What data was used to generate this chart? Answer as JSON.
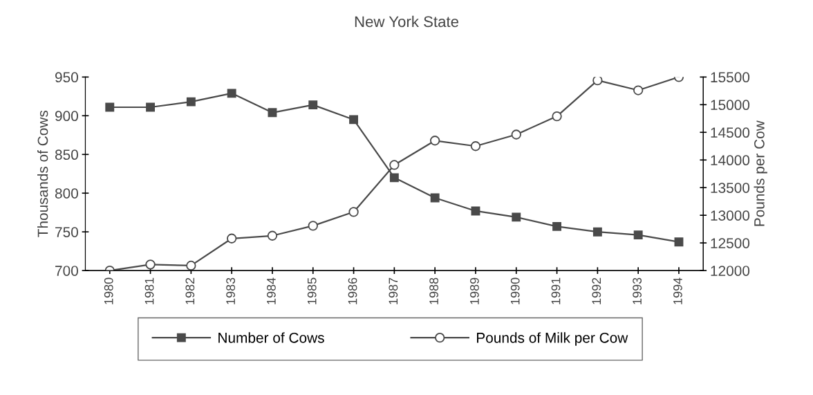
{
  "chart_data": {
    "type": "line",
    "title": "New York State",
    "ylabel": "Thousands of Cows",
    "y2label": "Pounds per Cow",
    "categories": [
      "1980",
      "1981",
      "1982",
      "1983",
      "1984",
      "1985",
      "1986",
      "1987",
      "1988",
      "1989",
      "1990",
      "1991",
      "1992",
      "1993",
      "1994"
    ],
    "series": [
      {
        "name": "Number of Cows",
        "color": "#4a4a4a",
        "marker": "square",
        "values": [
          911,
          911,
          918,
          929,
          904,
          914,
          895,
          820,
          794,
          777,
          769,
          757,
          750,
          746,
          737
        ]
      },
      {
        "name": "Pounds of Milk per Cow",
        "color": "#4a4a4a",
        "marker": "circle",
        "axis": "y2",
        "values": [
          12000,
          12110,
          12090,
          12580,
          12630,
          12810,
          13060,
          13910,
          14350,
          14250,
          14460,
          14790,
          15440,
          15260,
          15500
        ]
      }
    ],
    "ylim": [
      700,
      950
    ],
    "yticks": [
      700,
      750,
      800,
      850,
      900,
      950
    ],
    "y2lim": [
      12000,
      15500
    ],
    "y2ticks": [
      12000,
      12500,
      13000,
      13500,
      14000,
      14500,
      15000,
      15500
    ],
    "grid": false,
    "legend": "bottom",
    "line_style": "solid"
  }
}
